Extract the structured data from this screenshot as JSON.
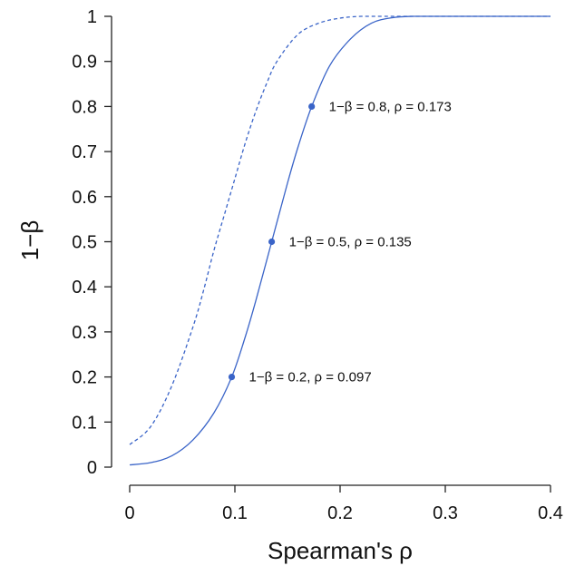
{
  "chart_data": {
    "type": "line",
    "xlabel": "Spearman's ρ",
    "ylabel": "1−β",
    "xlim": [
      0,
      0.4
    ],
    "ylim": [
      0,
      1
    ],
    "x_ticks": [
      "0",
      "0.1",
      "0.2",
      "0.3",
      "0.4"
    ],
    "y_ticks": [
      "0",
      "0.1",
      "0.2",
      "0.3",
      "0.4",
      "0.5",
      "0.6",
      "0.7",
      "0.8",
      "0.9",
      "1"
    ],
    "x_tick_values": [
      0,
      0.1,
      0.2,
      0.3,
      0.4
    ],
    "y_tick_values": [
      0,
      0.1,
      0.2,
      0.3,
      0.4,
      0.5,
      0.6,
      0.7,
      0.8,
      0.9,
      1
    ],
    "grid": false,
    "series": [
      {
        "style": "solid",
        "color": "#3a64c8",
        "x": [
          0,
          0.02,
          0.04,
          0.06,
          0.08,
          0.097,
          0.11,
          0.12,
          0.135,
          0.15,
          0.16,
          0.173,
          0.19,
          0.21,
          0.23,
          0.25,
          0.27,
          0.3,
          0.35,
          0.4
        ],
        "y": [
          0.005,
          0.01,
          0.025,
          0.06,
          0.12,
          0.2,
          0.29,
          0.37,
          0.5,
          0.63,
          0.71,
          0.8,
          0.89,
          0.95,
          0.985,
          0.997,
          1,
          1,
          1,
          1
        ]
      },
      {
        "style": "dashed",
        "color": "#3a64c8",
        "x": [
          0,
          0.02,
          0.04,
          0.06,
          0.07,
          0.08,
          0.09,
          0.1,
          0.11,
          0.12,
          0.13,
          0.14,
          0.16,
          0.18,
          0.2,
          0.22,
          0.24,
          0.26,
          0.3,
          0.35,
          0.4
        ],
        "y": [
          0.05,
          0.09,
          0.18,
          0.31,
          0.39,
          0.48,
          0.56,
          0.64,
          0.72,
          0.79,
          0.85,
          0.9,
          0.96,
          0.985,
          0.996,
          1,
          1,
          1,
          1,
          1,
          1
        ]
      }
    ],
    "points": [
      {
        "x": 0.097,
        "y": 0.2,
        "label": "1−β = 0.2, ρ = 0.097"
      },
      {
        "x": 0.135,
        "y": 0.5,
        "label": "1−β = 0.5, ρ = 0.135"
      },
      {
        "x": 0.173,
        "y": 0.8,
        "label": "1−β = 0.8, ρ = 0.173"
      }
    ]
  }
}
